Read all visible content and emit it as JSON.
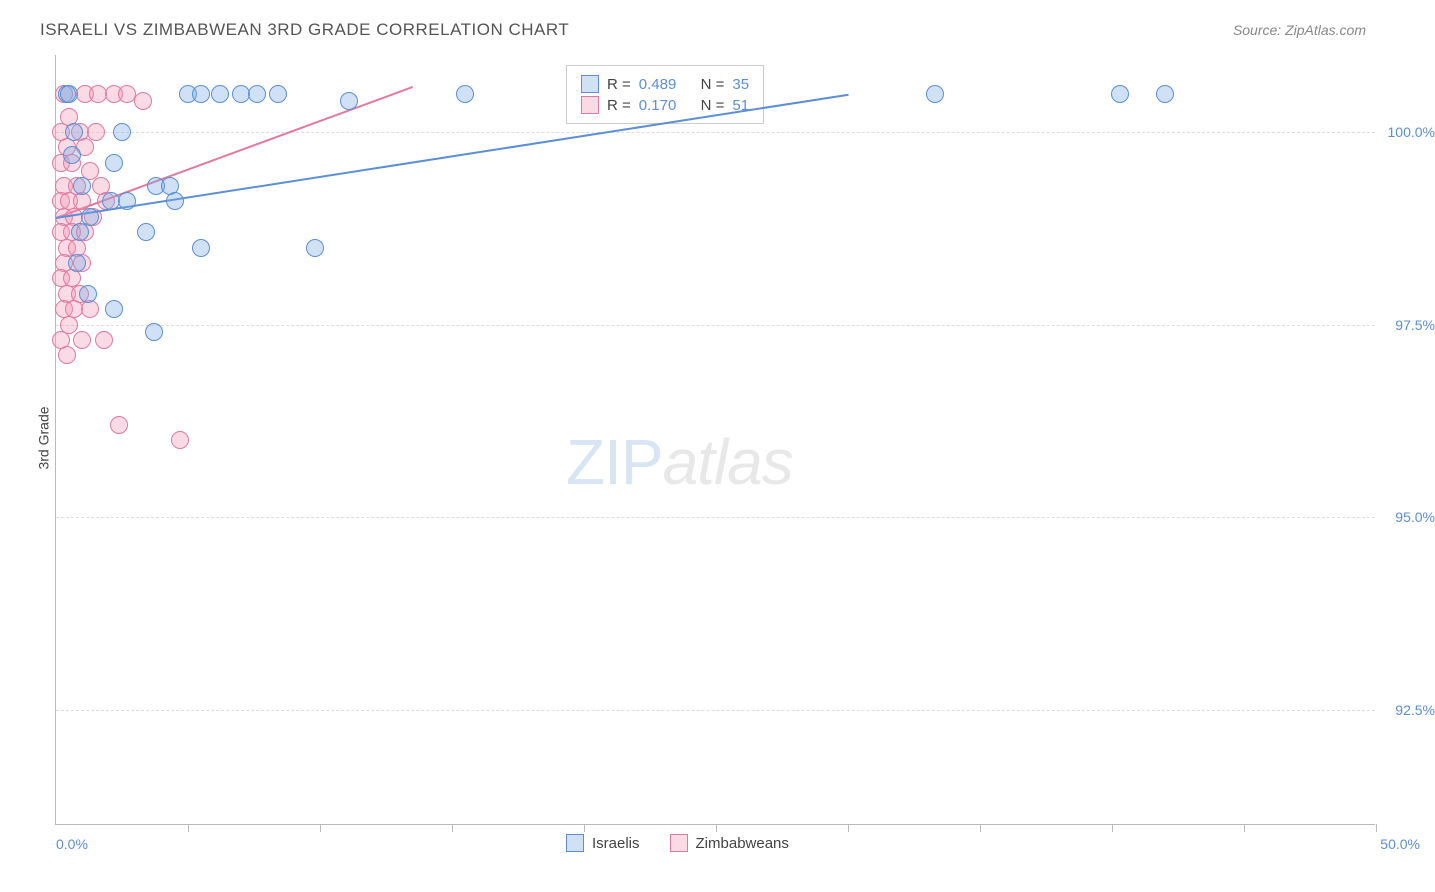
{
  "header": {
    "title": "ISRAELI VS ZIMBABWEAN 3RD GRADE CORRELATION CHART",
    "source_label": "Source: ",
    "source_name": "ZipAtlas.com"
  },
  "chart": {
    "type": "scatter",
    "y_axis_label": "3rd Grade",
    "ylim": [
      91.0,
      101.0
    ],
    "xlim": [
      0.0,
      50.0
    ],
    "y_ticks": [
      92.5,
      95.0,
      97.5,
      100.0
    ],
    "y_tick_labels": [
      "92.5%",
      "95.0%",
      "97.5%",
      "100.0%"
    ],
    "x_ticks": [
      0,
      5,
      10,
      15,
      20,
      25,
      30,
      35,
      40,
      45,
      50
    ],
    "x_left_label": "0.0%",
    "x_right_label": "50.0%",
    "background_color": "#ffffff",
    "grid_color": "#dddddd",
    "axis_color": "#bbbbbb",
    "tick_label_color": "#5b8fd6",
    "series": [
      {
        "name": "Israelis",
        "fill": "rgba(120, 170, 225, 0.35)",
        "stroke": "#5b8fd6",
        "marker_radius": 9,
        "R": "0.489",
        "N": "35",
        "trend": {
          "x1": 0.0,
          "y1": 98.9,
          "x2": 30.0,
          "y2": 100.5
        },
        "points": [
          [
            0.4,
            100.5
          ],
          [
            0.5,
            100.5
          ],
          [
            5.0,
            100.5
          ],
          [
            5.5,
            100.5
          ],
          [
            6.2,
            100.5
          ],
          [
            7.0,
            100.5
          ],
          [
            7.6,
            100.5
          ],
          [
            8.4,
            100.5
          ],
          [
            11.1,
            100.4
          ],
          [
            15.5,
            100.5
          ],
          [
            33.3,
            100.5
          ],
          [
            40.3,
            100.5
          ],
          [
            42.0,
            100.5
          ],
          [
            0.7,
            100.0
          ],
          [
            2.5,
            100.0
          ],
          [
            0.6,
            99.7
          ],
          [
            2.2,
            99.6
          ],
          [
            1.0,
            99.3
          ],
          [
            3.8,
            99.3
          ],
          [
            4.3,
            99.3
          ],
          [
            2.1,
            99.1
          ],
          [
            2.7,
            99.1
          ],
          [
            4.5,
            99.1
          ],
          [
            1.3,
            98.9
          ],
          [
            0.9,
            98.7
          ],
          [
            3.4,
            98.7
          ],
          [
            5.5,
            98.5
          ],
          [
            9.8,
            98.5
          ],
          [
            0.8,
            98.3
          ],
          [
            1.2,
            97.9
          ],
          [
            2.2,
            97.7
          ],
          [
            3.7,
            97.4
          ]
        ]
      },
      {
        "name": "Zimbabweans",
        "fill": "rgba(240, 150, 180, 0.35)",
        "stroke": "#e17a9e",
        "marker_radius": 9,
        "R": "0.170",
        "N": "51",
        "trend": {
          "x1": 0.0,
          "y1": 98.9,
          "x2": 13.5,
          "y2": 100.6
        },
        "points": [
          [
            0.3,
            100.5
          ],
          [
            1.1,
            100.5
          ],
          [
            1.6,
            100.5
          ],
          [
            2.2,
            100.5
          ],
          [
            2.7,
            100.5
          ],
          [
            3.3,
            100.4
          ],
          [
            0.5,
            100.2
          ],
          [
            0.2,
            100.0
          ],
          [
            0.9,
            100.0
          ],
          [
            1.5,
            100.0
          ],
          [
            0.4,
            99.8
          ],
          [
            1.1,
            99.8
          ],
          [
            0.2,
            99.6
          ],
          [
            0.6,
            99.6
          ],
          [
            1.3,
            99.5
          ],
          [
            0.3,
            99.3
          ],
          [
            0.8,
            99.3
          ],
          [
            1.7,
            99.3
          ],
          [
            0.2,
            99.1
          ],
          [
            0.5,
            99.1
          ],
          [
            1.0,
            99.1
          ],
          [
            1.9,
            99.1
          ],
          [
            0.3,
            98.9
          ],
          [
            0.7,
            98.9
          ],
          [
            1.4,
            98.9
          ],
          [
            0.2,
            98.7
          ],
          [
            0.6,
            98.7
          ],
          [
            1.1,
            98.7
          ],
          [
            0.4,
            98.5
          ],
          [
            0.8,
            98.5
          ],
          [
            0.3,
            98.3
          ],
          [
            1.0,
            98.3
          ],
          [
            0.2,
            98.1
          ],
          [
            0.6,
            98.1
          ],
          [
            0.4,
            97.9
          ],
          [
            0.9,
            97.9
          ],
          [
            0.3,
            97.7
          ],
          [
            0.7,
            97.7
          ],
          [
            1.3,
            97.7
          ],
          [
            0.5,
            97.5
          ],
          [
            0.2,
            97.3
          ],
          [
            1.0,
            97.3
          ],
          [
            1.8,
            97.3
          ],
          [
            0.4,
            97.1
          ],
          [
            2.4,
            96.2
          ],
          [
            4.7,
            96.0
          ]
        ]
      }
    ],
    "legend_labels": {
      "israelis": "Israelis",
      "zimbabweans": "Zimbabweans"
    },
    "stats_box": {
      "R_label": "R =",
      "N_label": "N ="
    }
  },
  "watermark": {
    "zip": "ZIP",
    "atlas": "atlas"
  }
}
